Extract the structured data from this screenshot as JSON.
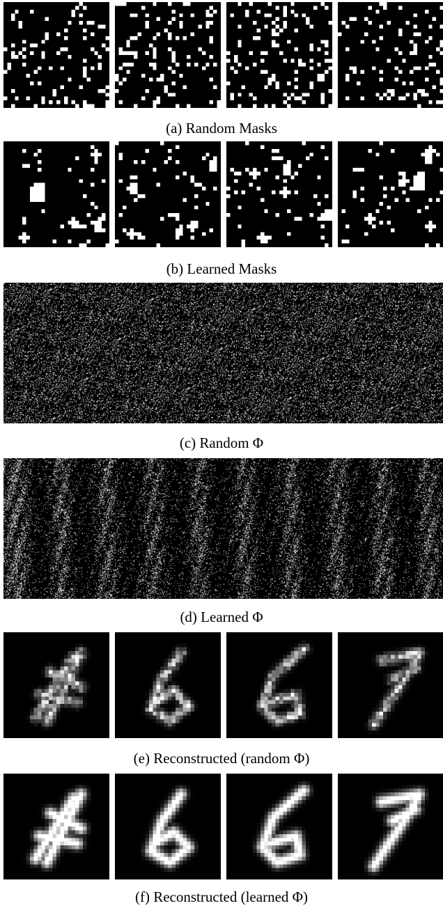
{
  "captions": {
    "a": "(a) Random Masks",
    "b": "(b) Learned Masks",
    "c": "(c) Random Φ",
    "d": "(d) Learned Φ",
    "e": "(e) Reconstructed (random Φ)",
    "f": "(f) Reconstructed (learned Φ)"
  },
  "panels": {
    "random_masks": {
      "count": 4,
      "grid": 28,
      "style": "binary-random"
    },
    "learned_masks": {
      "count": 4,
      "grid": 28,
      "style": "binary-clustered"
    },
    "random_phi": {
      "style": "noise-uniform"
    },
    "learned_phi": {
      "style": "noise-striped"
    },
    "reconstructed_random": {
      "count": 4,
      "grid": 28,
      "digits": [
        "4",
        "6",
        "6",
        "7"
      ],
      "style": "blurry-noisy"
    },
    "reconstructed_learned": {
      "count": 4,
      "grid": 28,
      "digits": [
        "4",
        "6",
        "6",
        "7"
      ],
      "style": "blurry-clean"
    }
  },
  "colors": {
    "background": "#000000",
    "foreground": "#ffffff",
    "page": "#ffffff"
  }
}
